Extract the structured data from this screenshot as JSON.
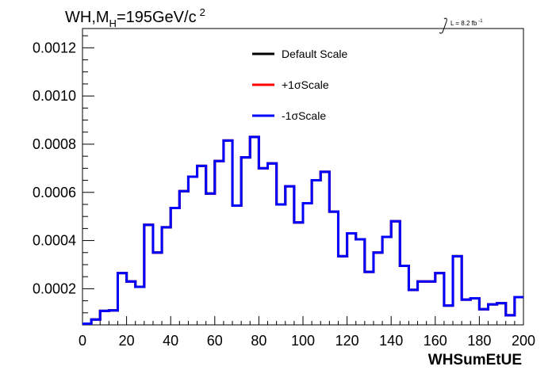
{
  "chart_data": {
    "type": "line",
    "title": {
      "prefix": "WH,M",
      "subscript": "H",
      "suffix": "=195GeV/c",
      "superscript": "2"
    },
    "lumi": {
      "text": "L = 8.2 fb",
      "superscript": "-1"
    },
    "xlabel": "WHSumEtUE",
    "ylabel": "",
    "xlim": [
      0,
      200
    ],
    "ylim": [
      5e-05,
      0.00128
    ],
    "x_ticks": [
      "0",
      "20",
      "40",
      "60",
      "80",
      "100",
      "120",
      "140",
      "160",
      "180",
      "200"
    ],
    "y_ticks": [
      "0.0002",
      "0.0004",
      "0.0006",
      "0.0008",
      "0.0010",
      "0.0012"
    ],
    "legend_position": "top-center",
    "bin_width": 4,
    "bin_edges_start": 0,
    "series": [
      {
        "name": "Default Scale",
        "color": "#000000",
        "values": [
          5.5e-05,
          7.2e-05,
          0.000108,
          0.00011,
          0.000265,
          0.00023,
          0.000208,
          0.000465,
          0.00035,
          0.000455,
          0.000535,
          0.000605,
          0.000665,
          0.00071,
          0.000595,
          0.00073,
          0.000815,
          0.000545,
          0.000745,
          0.00083,
          0.0007,
          0.00072,
          0.00055,
          0.000625,
          0.000475,
          0.000555,
          0.00065,
          0.000685,
          0.00052,
          0.000335,
          0.00043,
          0.000405,
          0.00027,
          0.00035,
          0.000415,
          0.00048,
          0.000295,
          0.000195,
          0.00023,
          0.00023,
          0.000265,
          0.00013,
          0.000335,
          0.000155,
          0.00016,
          0.000115,
          0.000135,
          0.00014,
          9e-05,
          0.000165
        ]
      },
      {
        "name": "+1σScale",
        "color": "#ff0000",
        "values": [
          5.5e-05,
          7.2e-05,
          0.000108,
          0.00011,
          0.000265,
          0.00023,
          0.000208,
          0.000465,
          0.00035,
          0.000455,
          0.000535,
          0.000605,
          0.000665,
          0.00071,
          0.000595,
          0.00073,
          0.000815,
          0.000545,
          0.000745,
          0.00083,
          0.0007,
          0.00072,
          0.00055,
          0.000625,
          0.000475,
          0.000555,
          0.00065,
          0.000685,
          0.00052,
          0.000335,
          0.00043,
          0.000405,
          0.00027,
          0.00035,
          0.000415,
          0.00048,
          0.000295,
          0.000195,
          0.00023,
          0.00023,
          0.000265,
          0.00013,
          0.000335,
          0.000155,
          0.00016,
          0.000115,
          0.000135,
          0.00014,
          9e-05,
          0.000165
        ]
      },
      {
        "name": "-1σScale",
        "color": "#0000ff",
        "values": [
          5.5e-05,
          7.2e-05,
          0.000108,
          0.00011,
          0.000265,
          0.00023,
          0.000208,
          0.000465,
          0.00035,
          0.000455,
          0.000535,
          0.000605,
          0.000665,
          0.00071,
          0.000595,
          0.00073,
          0.000815,
          0.000545,
          0.000745,
          0.00083,
          0.0007,
          0.00072,
          0.00055,
          0.000625,
          0.000475,
          0.000555,
          0.00065,
          0.000685,
          0.00052,
          0.000335,
          0.00043,
          0.000405,
          0.00027,
          0.00035,
          0.000415,
          0.00048,
          0.000295,
          0.000195,
          0.00023,
          0.00023,
          0.000265,
          0.00013,
          0.000335,
          0.000155,
          0.00016,
          0.000115,
          0.000135,
          0.00014,
          9e-05,
          0.000165
        ]
      }
    ]
  }
}
